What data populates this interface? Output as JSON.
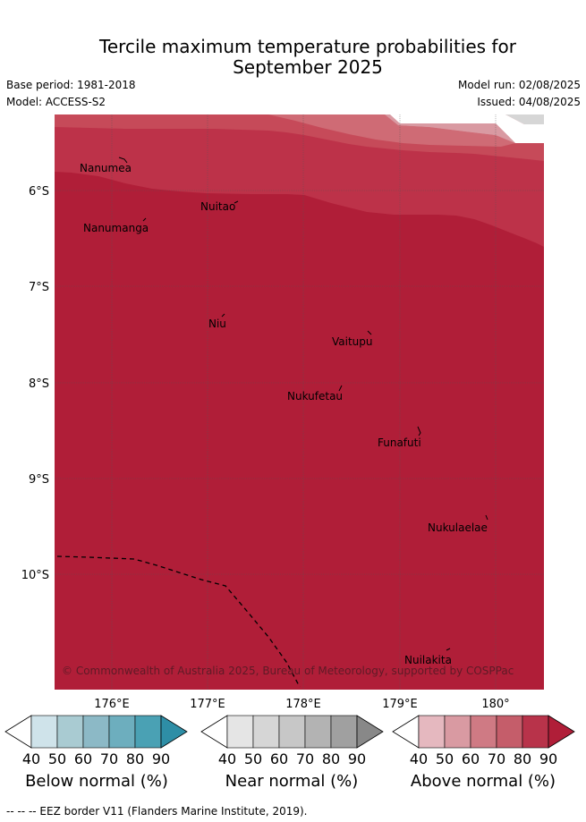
{
  "title_line1": "Tercile maximum temperature probabilities for",
  "title_line2": "September 2025",
  "base_period": "Base period: 1981-2018",
  "model": "Model: ACCESS-S2",
  "model_run": "Model run: 02/08/2025",
  "issued": "Issued: 04/08/2025",
  "lat_labels": [
    "6°S",
    "7°S",
    "8°S",
    "9°S",
    "10°S"
  ],
  "lon_labels": [
    "176°E",
    "177°E",
    "178°E",
    "179°E",
    "180°"
  ],
  "islands": [
    "Nanumea",
    "Nuitao",
    "Nanumanga",
    "Niu",
    "Vaitupu",
    "Nukufetau",
    "Funafuti",
    "Nukulaelae",
    "Nuilakita"
  ],
  "copyright": "© Commonwealth of Australia 2025, Bureau of Meteorology, supported by COSPPac",
  "colorbars": [
    {
      "label": "Below normal (%)",
      "ticks": [
        "40",
        "50",
        "60",
        "70",
        "80",
        "90"
      ],
      "colors": [
        "#cfe3ea",
        "#a9cbd2",
        "#8cb9c6",
        "#6daebe",
        "#4aa1b4",
        "#2e8ea6"
      ]
    },
    {
      "label": "Near normal (%)",
      "ticks": [
        "40",
        "50",
        "60",
        "70",
        "80",
        "90"
      ],
      "colors": [
        "#e5e5e5",
        "#d6d6d6",
        "#c7c7c7",
        "#b3b3b3",
        "#a0a0a0",
        "#888888"
      ]
    },
    {
      "label": "Above normal (%)",
      "ticks": [
        "40",
        "50",
        "60",
        "70",
        "80",
        "90"
      ],
      "colors": [
        "#e5b8bf",
        "#d99aa2",
        "#cf7a84",
        "#c55d6a",
        "#b8334a",
        "#b01e38"
      ]
    }
  ],
  "footer": "--  --  -- EEZ border V11 (Flanders Marine Institute, 2019).",
  "legend_colors": {
    "above_90": "#b01e38",
    "above_80": "#bf3249",
    "above_70": "#c64a59",
    "above_60": "#cf6b75",
    "above_50": "#d99aa2",
    "near_60": "#d6d6d6"
  }
}
